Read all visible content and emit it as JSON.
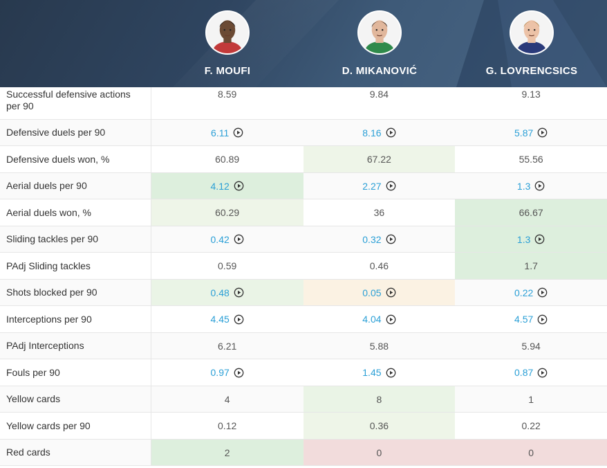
{
  "players": [
    {
      "name": "F. MOUFI",
      "skin": "#6b4a34",
      "hair": "#1a1a1a",
      "shirt": "#c23a3a"
    },
    {
      "name": "D. MIKANOVIĆ",
      "skin": "#e1b79c",
      "hair": "#3a2a20",
      "shirt": "#2f8a4b"
    },
    {
      "name": "G. LOVRENCSICS",
      "skin": "#ecc2a7",
      "hair": "#b58a52",
      "shirt": "#2a3a7a"
    }
  ],
  "rows": [
    {
      "label": "Successful defensive actions per 90",
      "values": [
        "8.59",
        "9.84",
        "9.13"
      ],
      "links": [
        false,
        false,
        false
      ],
      "shade": [
        "",
        "",
        ""
      ]
    },
    {
      "label": "Defensive duels per 90",
      "values": [
        "6.11",
        "8.16",
        "5.87"
      ],
      "links": [
        true,
        true,
        true
      ],
      "shade": [
        "",
        "",
        ""
      ]
    },
    {
      "label": "Defensive duels won, %",
      "values": [
        "60.89",
        "67.22",
        "55.56"
      ],
      "links": [
        false,
        false,
        false
      ],
      "shade": [
        "",
        "g3",
        ""
      ]
    },
    {
      "label": "Aerial duels per 90",
      "values": [
        "4.12",
        "2.27",
        "1.3"
      ],
      "links": [
        true,
        true,
        true
      ],
      "shade": [
        "g1",
        "",
        ""
      ]
    },
    {
      "label": "Aerial duels won, %",
      "values": [
        "60.29",
        "36",
        "66.67"
      ],
      "links": [
        false,
        false,
        false
      ],
      "shade": [
        "g3",
        "",
        "g1"
      ]
    },
    {
      "label": "Sliding tackles per 90",
      "values": [
        "0.42",
        "0.32",
        "1.3"
      ],
      "links": [
        true,
        true,
        true
      ],
      "shade": [
        "",
        "",
        "g1"
      ]
    },
    {
      "label": "PAdj Sliding tackles",
      "values": [
        "0.59",
        "0.46",
        "1.7"
      ],
      "links": [
        false,
        false,
        false
      ],
      "shade": [
        "",
        "",
        "g1"
      ]
    },
    {
      "label": "Shots blocked per 90",
      "values": [
        "0.48",
        "0.05",
        "0.22"
      ],
      "links": [
        true,
        true,
        true
      ],
      "shade": [
        "g2",
        "y1",
        ""
      ]
    },
    {
      "label": "Interceptions per 90",
      "values": [
        "4.45",
        "4.04",
        "4.57"
      ],
      "links": [
        true,
        true,
        true
      ],
      "shade": [
        "",
        "",
        ""
      ]
    },
    {
      "label": "PAdj Interceptions",
      "values": [
        "6.21",
        "5.88",
        "5.94"
      ],
      "links": [
        false,
        false,
        false
      ],
      "shade": [
        "",
        "",
        ""
      ]
    },
    {
      "label": "Fouls per 90",
      "values": [
        "0.97",
        "1.45",
        "0.87"
      ],
      "links": [
        true,
        true,
        true
      ],
      "shade": [
        "",
        "",
        ""
      ]
    },
    {
      "label": "Yellow cards",
      "values": [
        "4",
        "8",
        "1"
      ],
      "links": [
        false,
        false,
        false
      ],
      "shade": [
        "",
        "g2",
        ""
      ]
    },
    {
      "label": "Yellow cards per 90",
      "values": [
        "0.12",
        "0.36",
        "0.22"
      ],
      "links": [
        false,
        false,
        false
      ],
      "shade": [
        "",
        "g3",
        ""
      ]
    },
    {
      "label": "Red cards",
      "values": [
        "2",
        "0",
        "0"
      ],
      "links": [
        false,
        false,
        false
      ],
      "shade": [
        "g1",
        "r1",
        "r1"
      ]
    }
  ]
}
